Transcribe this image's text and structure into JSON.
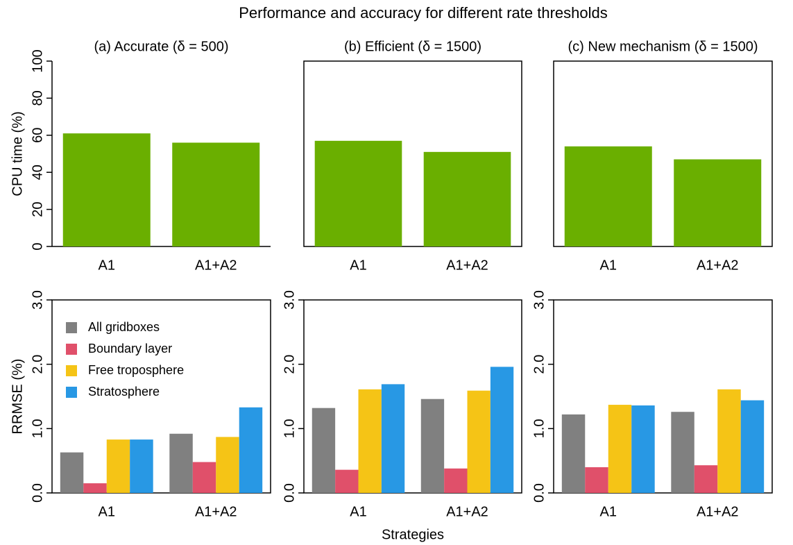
{
  "title": "Performance and accuracy for different rate thresholds",
  "xlabel": "Strategies",
  "chart_data": [
    {
      "type": "bar",
      "title": "(a) Accurate (δ = 500)",
      "ylabel": "CPU time (%)",
      "box": false,
      "categories": [
        "A1",
        "A1+A2"
      ],
      "values": [
        61,
        56
      ],
      "color": "#6aaf00",
      "ylim": [
        0,
        100
      ],
      "yticks": [
        0,
        20,
        40,
        60,
        80,
        100
      ]
    },
    {
      "type": "bar",
      "title": "(b) Efficient (δ = 1500)",
      "box": true,
      "categories": [
        "A1",
        "A1+A2"
      ],
      "values": [
        57,
        51
      ],
      "color": "#6aaf00",
      "ylim": [
        0,
        100
      ]
    },
    {
      "type": "bar",
      "title": "(c) New mechanism (δ = 1500)",
      "box": true,
      "categories": [
        "A1",
        "A1+A2"
      ],
      "values": [
        54,
        47
      ],
      "color": "#6aaf00",
      "ylim": [
        0,
        100
      ]
    },
    {
      "type": "grouped-bar",
      "ylabel": "RRMSE (%)",
      "box": true,
      "legend": "upper left",
      "categories": [
        "A1",
        "A1+A2"
      ],
      "series": [
        {
          "name": "All gridboxes",
          "color": "#808080",
          "values": [
            0.63,
            0.92
          ]
        },
        {
          "name": "Boundary layer",
          "color": "#e0506a",
          "values": [
            0.15,
            0.48
          ]
        },
        {
          "name": "Free troposphere",
          "color": "#f5c416",
          "values": [
            0.83,
            0.87
          ]
        },
        {
          "name": "Stratosphere",
          "color": "#2898e4",
          "values": [
            0.83,
            1.33
          ]
        }
      ],
      "ylim": [
        0,
        3
      ],
      "yticks": [
        {
          "value": 0,
          "label": "0.0"
        },
        {
          "value": 1,
          "label": "1.0"
        },
        {
          "value": 2,
          "label": "2.0"
        },
        {
          "value": 3,
          "label": "3.0"
        }
      ]
    },
    {
      "type": "grouped-bar",
      "box": true,
      "categories": [
        "A1",
        "A1+A2"
      ],
      "series": [
        {
          "color": "#808080",
          "values": [
            1.32,
            1.46
          ]
        },
        {
          "color": "#e0506a",
          "values": [
            0.36,
            0.38
          ]
        },
        {
          "color": "#f5c416",
          "values": [
            1.61,
            1.59
          ]
        },
        {
          "color": "#2898e4",
          "values": [
            1.69,
            1.96
          ]
        }
      ],
      "ylim": [
        0,
        3
      ],
      "yticks": [
        {
          "value": 0,
          "label": "0.0"
        },
        {
          "value": 1,
          "label": "1.0"
        },
        {
          "value": 2,
          "label": "2.0"
        },
        {
          "value": 3,
          "label": "3.0"
        }
      ]
    },
    {
      "type": "grouped-bar",
      "box": true,
      "categories": [
        "A1",
        "A1+A2"
      ],
      "series": [
        {
          "color": "#808080",
          "values": [
            1.22,
            1.26
          ]
        },
        {
          "color": "#e0506a",
          "values": [
            0.4,
            0.43
          ]
        },
        {
          "color": "#f5c416",
          "values": [
            1.37,
            1.61
          ]
        },
        {
          "color": "#2898e4",
          "values": [
            1.36,
            1.44
          ]
        }
      ],
      "ylim": [
        0,
        3
      ],
      "yticks": [
        {
          "value": 0,
          "label": "0.0"
        },
        {
          "value": 1,
          "label": "1.0"
        },
        {
          "value": 2,
          "label": "2.0"
        },
        {
          "value": 3,
          "label": "3.0"
        }
      ]
    }
  ]
}
